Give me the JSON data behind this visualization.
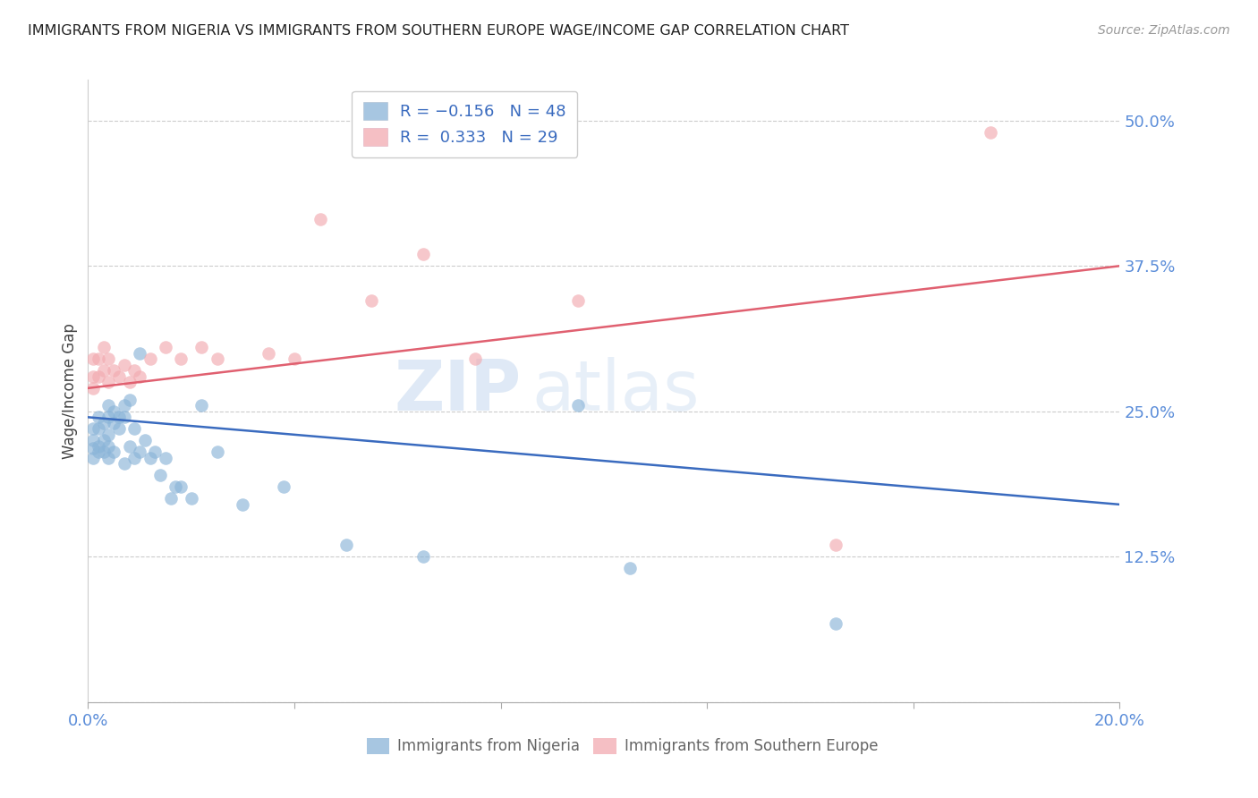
{
  "title": "IMMIGRANTS FROM NIGERIA VS IMMIGRANTS FROM SOUTHERN EUROPE WAGE/INCOME GAP CORRELATION CHART",
  "source": "Source: ZipAtlas.com",
  "ylabel": "Wage/Income Gap",
  "yticks": [
    0.0,
    0.125,
    0.25,
    0.375,
    0.5
  ],
  "ytick_labels": [
    "",
    "12.5%",
    "25.0%",
    "37.5%",
    "50.0%"
  ],
  "xlim": [
    0.0,
    0.2
  ],
  "ylim": [
    0.0,
    0.535
  ],
  "nigeria_color": "#8ab4d8",
  "s_europe_color": "#f2aab0",
  "trend_nigeria_color": "#3a6bbf",
  "trend_s_europe_color": "#e06070",
  "watermark_zip": "ZIP",
  "watermark_atlas": "atlas",
  "nigeria_x": [
    0.001,
    0.001,
    0.001,
    0.001,
    0.002,
    0.002,
    0.002,
    0.002,
    0.003,
    0.003,
    0.003,
    0.004,
    0.004,
    0.004,
    0.004,
    0.004,
    0.005,
    0.005,
    0.005,
    0.006,
    0.006,
    0.007,
    0.007,
    0.007,
    0.008,
    0.008,
    0.009,
    0.009,
    0.01,
    0.01,
    0.011,
    0.012,
    0.013,
    0.014,
    0.015,
    0.016,
    0.017,
    0.018,
    0.02,
    0.022,
    0.025,
    0.03,
    0.038,
    0.05,
    0.065,
    0.095,
    0.105,
    0.145
  ],
  "nigeria_y": [
    0.235,
    0.225,
    0.218,
    0.21,
    0.245,
    0.235,
    0.22,
    0.215,
    0.24,
    0.225,
    0.215,
    0.255,
    0.245,
    0.23,
    0.22,
    0.21,
    0.25,
    0.24,
    0.215,
    0.245,
    0.235,
    0.255,
    0.245,
    0.205,
    0.26,
    0.22,
    0.235,
    0.21,
    0.3,
    0.215,
    0.225,
    0.21,
    0.215,
    0.195,
    0.21,
    0.175,
    0.185,
    0.185,
    0.175,
    0.255,
    0.215,
    0.17,
    0.185,
    0.135,
    0.125,
    0.255,
    0.115,
    0.068
  ],
  "s_europe_x": [
    0.001,
    0.001,
    0.001,
    0.002,
    0.002,
    0.003,
    0.003,
    0.004,
    0.004,
    0.005,
    0.006,
    0.007,
    0.008,
    0.009,
    0.01,
    0.012,
    0.015,
    0.018,
    0.022,
    0.025,
    0.035,
    0.04,
    0.045,
    0.055,
    0.065,
    0.075,
    0.095,
    0.145,
    0.175
  ],
  "s_europe_y": [
    0.295,
    0.28,
    0.27,
    0.295,
    0.28,
    0.305,
    0.285,
    0.295,
    0.275,
    0.285,
    0.28,
    0.29,
    0.275,
    0.285,
    0.28,
    0.295,
    0.305,
    0.295,
    0.305,
    0.295,
    0.3,
    0.295,
    0.415,
    0.345,
    0.385,
    0.295,
    0.345,
    0.135,
    0.49
  ],
  "marker_size": 110,
  "trend_nigeria_y0": 0.245,
  "trend_nigeria_y1": 0.17,
  "trend_s_europe_y0": 0.27,
  "trend_s_europe_y1": 0.375
}
